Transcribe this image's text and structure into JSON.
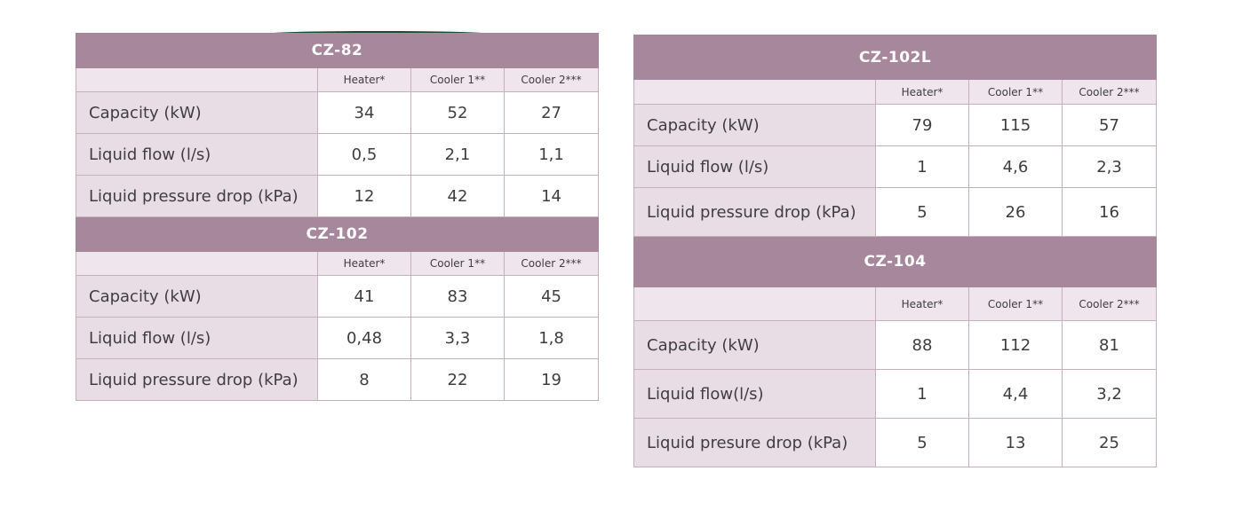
{
  "columns": [
    "Heater*",
    "Cooler 1**",
    "Cooler 2***"
  ],
  "left_tables": [
    {
      "model": "CZ-82",
      "rows": [
        {
          "label": "Capacity (kW)",
          "values": [
            "34",
            "52",
            "27"
          ]
        },
        {
          "label": "Liquid flow (l/s)",
          "values": [
            "0,5",
            "2,1",
            "1,1"
          ]
        },
        {
          "label": "Liquid pressure drop (kPa)",
          "values": [
            "12",
            "42",
            "14"
          ]
        }
      ]
    },
    {
      "model": "CZ-102",
      "rows": [
        {
          "label": "Capacity (kW)",
          "values": [
            "41",
            "83",
            "45"
          ]
        },
        {
          "label": "Liquid flow (l/s)",
          "values": [
            "0,48",
            "3,3",
            "1,8"
          ]
        },
        {
          "label": "Liquid pressure drop (kPa)",
          "values": [
            "8",
            "22",
            "19"
          ]
        }
      ]
    }
  ],
  "right_tables": [
    {
      "model": "CZ-102L",
      "rows": [
        {
          "label": "Capacity (kW)",
          "values": [
            "79",
            "115",
            "57"
          ]
        },
        {
          "label": "Liquid flow (l/s)",
          "values": [
            "1",
            "4,6",
            "2,3"
          ]
        },
        {
          "label": "Liquid pressure drop (kPa)",
          "values": [
            "5",
            "26",
            "16"
          ]
        }
      ]
    },
    {
      "model": "CZ-104",
      "rows": [
        {
          "label": "Capacity (kW)",
          "values": [
            "88",
            "112",
            "81"
          ]
        },
        {
          "label": "Liquid flow(l/s)",
          "values": [
            "1",
            "4,4",
            "3,2"
          ]
        },
        {
          "label": "Liquid presure drop (kPa)",
          "values": [
            "5",
            "13",
            "25"
          ]
        }
      ]
    }
  ],
  "colors": {
    "header_bg": "#a6879c",
    "label_bg": "#e9dde5",
    "subheader_bg": "#efe5ec",
    "border": "#c9aebc",
    "text": "#3e3e3e"
  }
}
